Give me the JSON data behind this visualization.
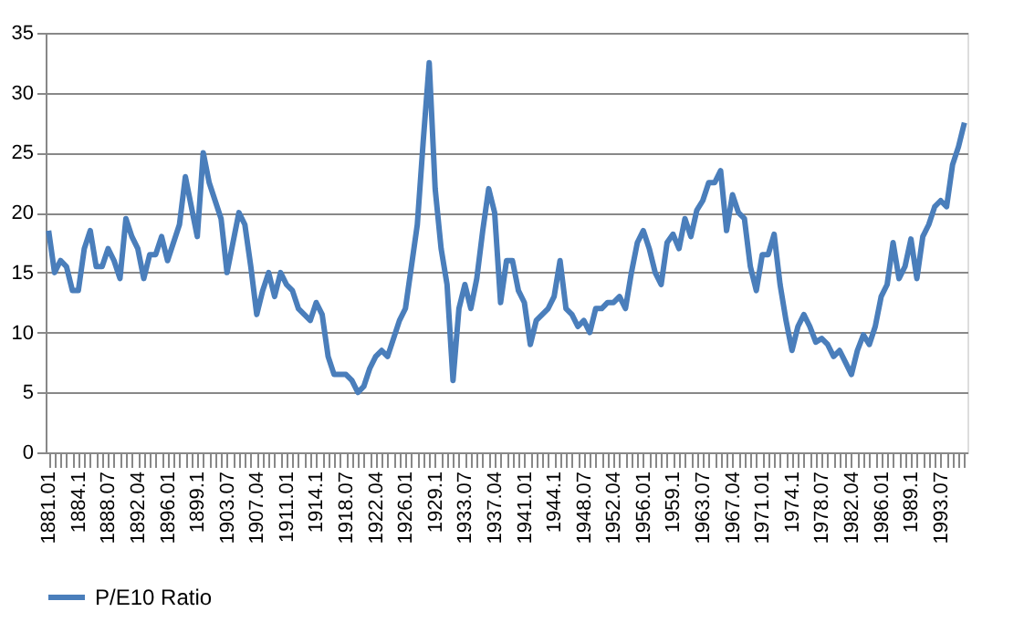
{
  "chart_data": {
    "type": "line",
    "categories": [
      "1881.01",
      null,
      null,
      null,
      null,
      "1884.1",
      null,
      null,
      null,
      null,
      "1888.07",
      null,
      null,
      null,
      null,
      "1892.04",
      null,
      null,
      null,
      null,
      "1896.01",
      null,
      null,
      null,
      null,
      "1899.1",
      null,
      null,
      null,
      null,
      "1903.07",
      null,
      null,
      null,
      null,
      "1907.04",
      null,
      null,
      null,
      null,
      "1911.01",
      null,
      null,
      null,
      null,
      "1914.1",
      null,
      null,
      null,
      null,
      "1918.07",
      null,
      null,
      null,
      null,
      "1922.04",
      null,
      null,
      null,
      null,
      "1926.01",
      null,
      null,
      null,
      null,
      "1929.1",
      null,
      null,
      null,
      null,
      "1933.07",
      null,
      null,
      null,
      null,
      "1937.04",
      null,
      null,
      null,
      null,
      "1941.01",
      null,
      null,
      null,
      null,
      "1944.1",
      null,
      null,
      null,
      null,
      "1948.07",
      null,
      null,
      null,
      null,
      "1952.04",
      null,
      null,
      null,
      null,
      "1956.01",
      null,
      null,
      null,
      null,
      "1959.1",
      null,
      null,
      null,
      null,
      "1963.07",
      null,
      null,
      null,
      null,
      "1967.04",
      null,
      null,
      null,
      null,
      "1971.01",
      null,
      null,
      null,
      null,
      "1974.1",
      null,
      null,
      null,
      null,
      "1978.07",
      null,
      null,
      null,
      null,
      "1982.04",
      null,
      null,
      null,
      null,
      "1986.01",
      null,
      null,
      null,
      null,
      "1989.1",
      null,
      null,
      null,
      null,
      "1993.07",
      null,
      null,
      null,
      null
    ],
    "series": [
      {
        "name": "P/E10 Ratio",
        "color": "#4a7ebb",
        "values": [
          18.5,
          15,
          16,
          15.5,
          13.5,
          13.5,
          17,
          18.5,
          15.5,
          15.5,
          17,
          16,
          14.5,
          19.5,
          18,
          17,
          14.5,
          16.5,
          16.5,
          18,
          16,
          17.5,
          19,
          23,
          20.5,
          18,
          25,
          22.5,
          21,
          19.5,
          15,
          17.5,
          20,
          19,
          15.5,
          11.5,
          13.5,
          15,
          13,
          15,
          14,
          13.5,
          12,
          11.5,
          11,
          12.5,
          11.5,
          8,
          6.5,
          6.5,
          6.5,
          6,
          5,
          5.5,
          7,
          8,
          8.5,
          8,
          9.5,
          11,
          12,
          15.5,
          19,
          26,
          32.5,
          22,
          17,
          14,
          6,
          12,
          14,
          12,
          14.5,
          18.5,
          22,
          20,
          12.5,
          16,
          16,
          13.5,
          12.5,
          9,
          11,
          11.5,
          12,
          13,
          16,
          12,
          11.5,
          10.5,
          11,
          10,
          12,
          12,
          12.5,
          12.5,
          13,
          12,
          15,
          17.5,
          18.5,
          17,
          15,
          14,
          17.5,
          18.2,
          17,
          19.5,
          18,
          20.2,
          21,
          22.5,
          22.5,
          23.5,
          18.5,
          21.5,
          20,
          19.5,
          15.5,
          13.5,
          16.5,
          16.5,
          18.2,
          14,
          11,
          8.5,
          10.5,
          11.5,
          10.5,
          9.2,
          9.5,
          9,
          8,
          8.5,
          7.5,
          6.5,
          8.5,
          9.8,
          9,
          10.5,
          13,
          14,
          17.5,
          14.5,
          15.5,
          17.8,
          14.5,
          18,
          19,
          20.5,
          21,
          20.5,
          24,
          25.5,
          27.5
        ]
      }
    ],
    "ylim": [
      0,
      35
    ],
    "yticks": [
      0,
      5,
      10,
      15,
      20,
      25,
      30,
      35
    ],
    "grid": "y",
    "legend": "bottom",
    "line_style": "solid"
  }
}
